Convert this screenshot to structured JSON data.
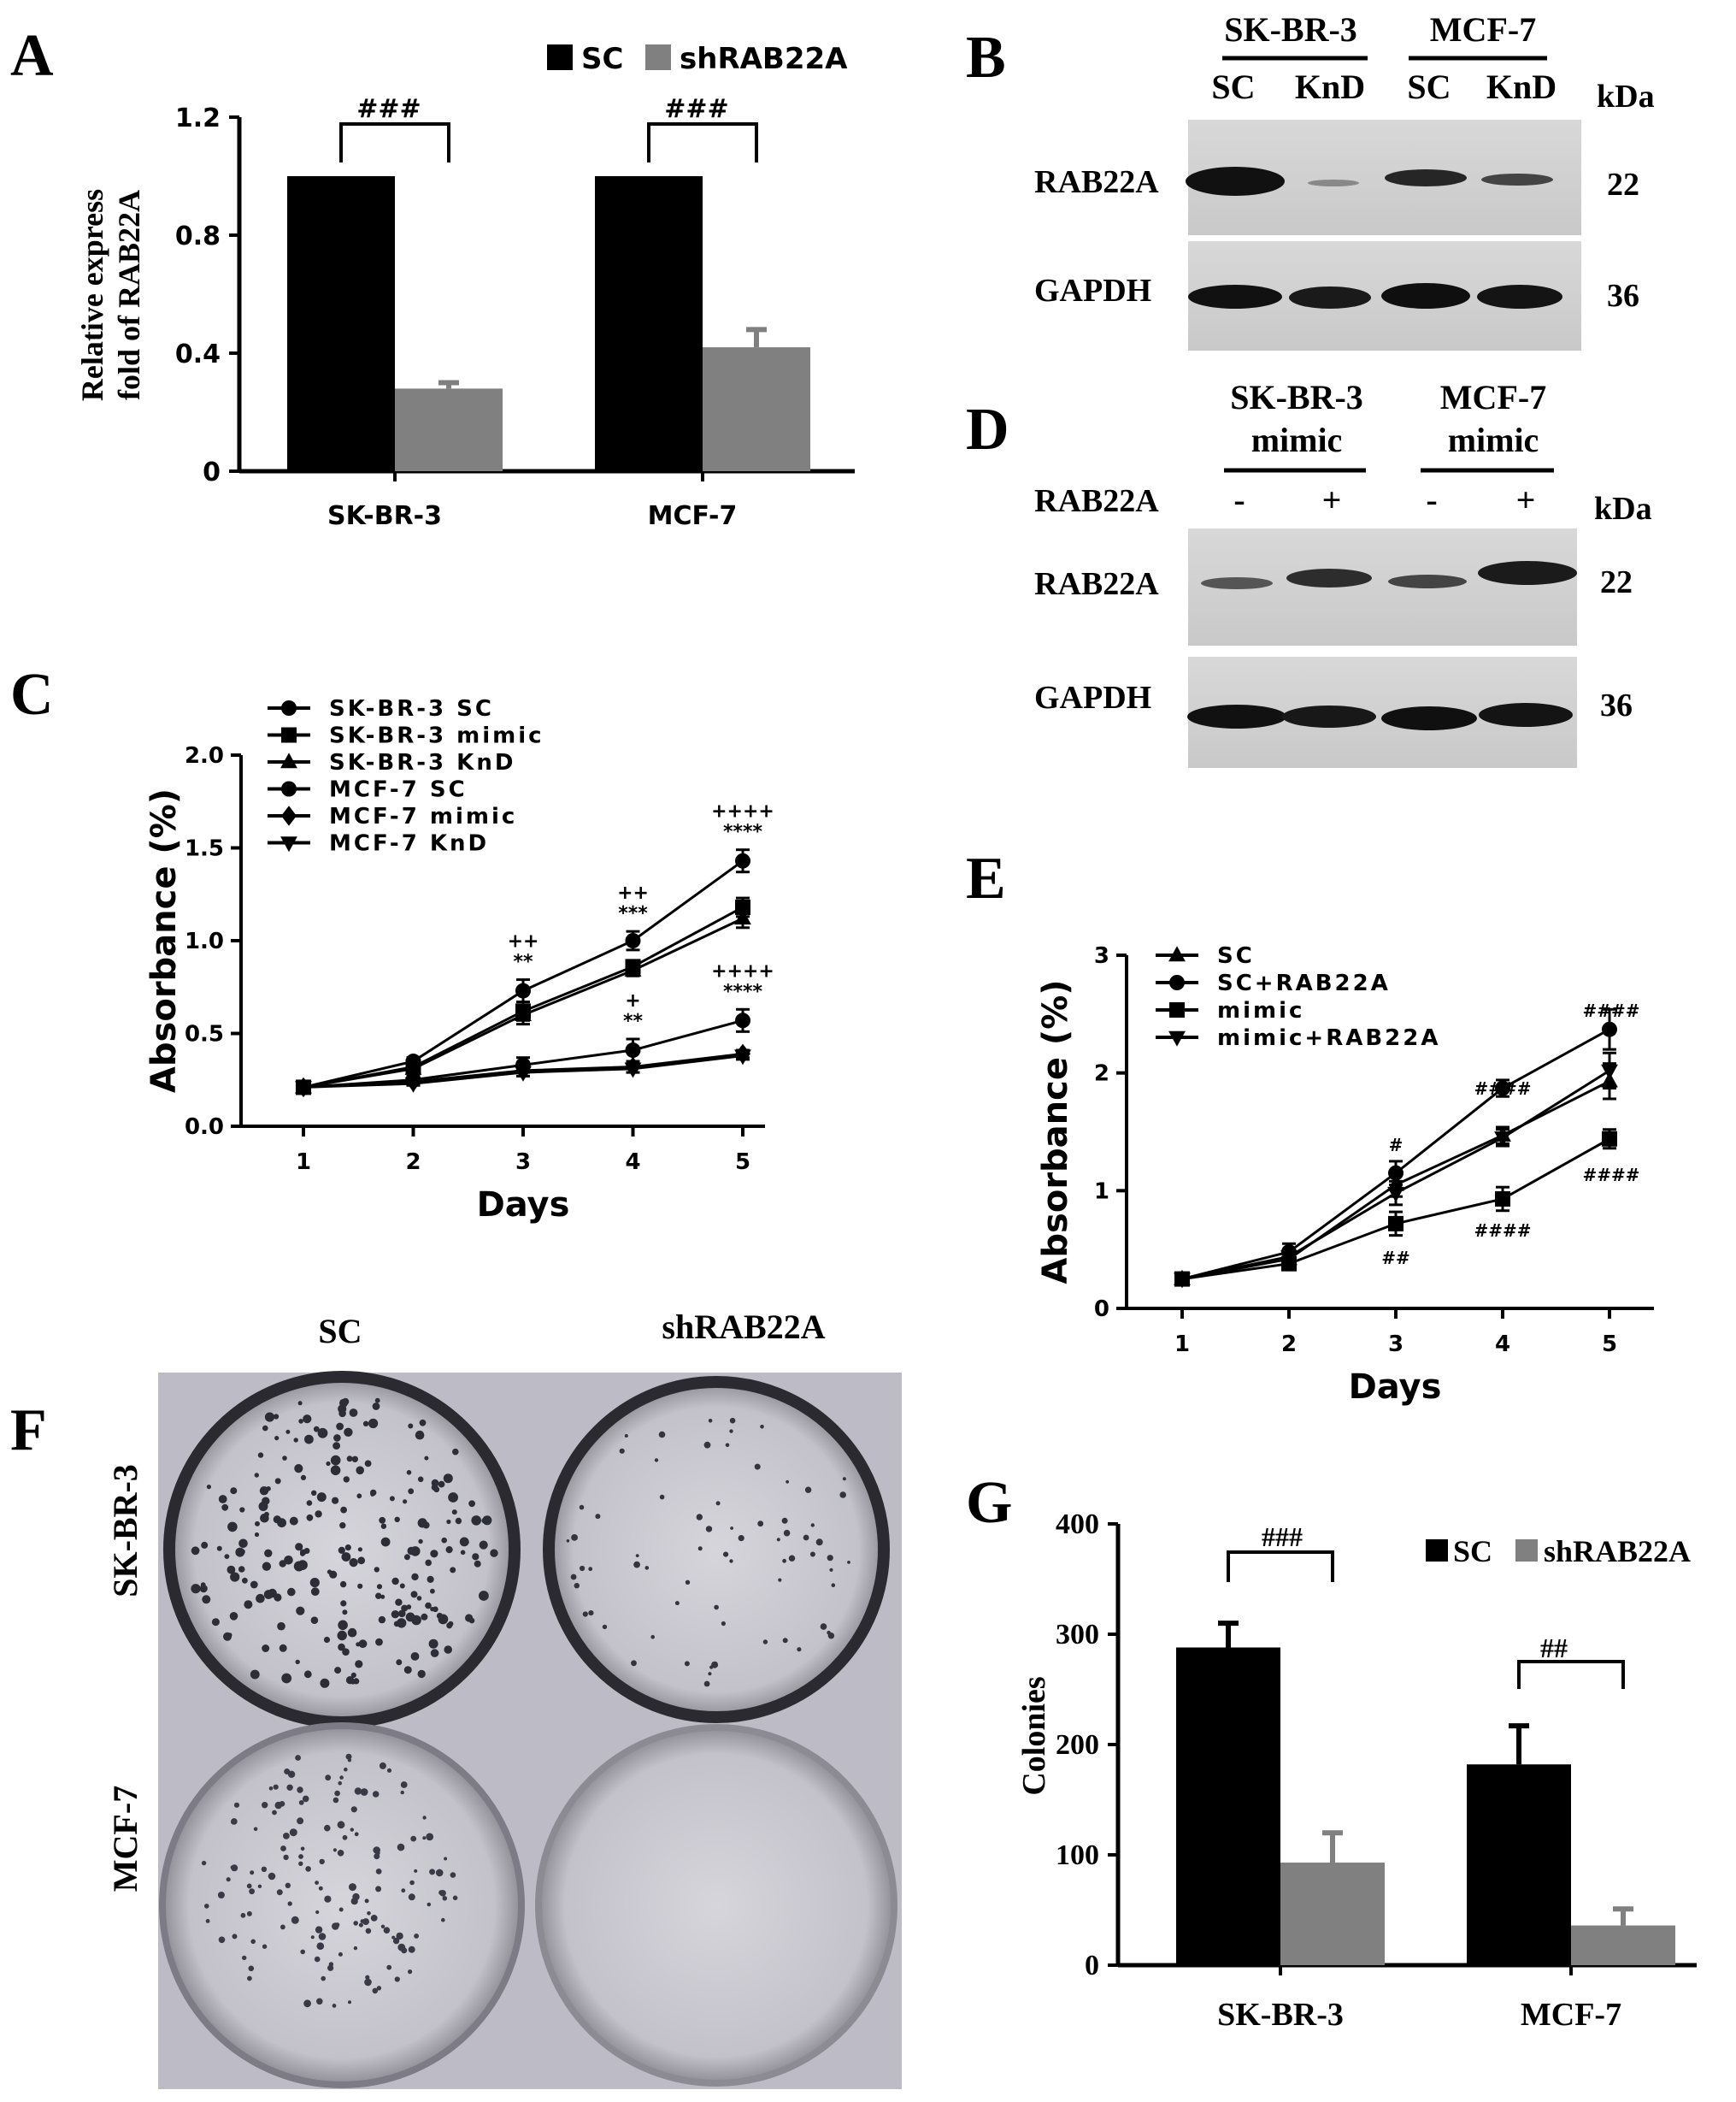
{
  "panels": {
    "A": {
      "letter": "A",
      "legend": [
        "SC",
        "shRAB22A"
      ],
      "sig": [
        "###",
        "###"
      ]
    },
    "B": {
      "letter": "B",
      "groups": [
        "SK-BR-3",
        "MCF-7"
      ],
      "lanes": [
        "SC",
        "KnD",
        "SC",
        "KnD"
      ],
      "kda_label": "kDa",
      "rows": [
        "RAB22A",
        "GAPDH"
      ],
      "kda": [
        "22",
        "36"
      ]
    },
    "C": {
      "letter": "C",
      "legend": [
        "SK-BR-3 SC",
        "SK-BR-3 mimic",
        "SK-BR-3 KnD",
        "MCF-7 SC",
        "MCF-7 mimic",
        "MCF-7 KnD"
      ],
      "annotations": [
        {
          "x": 3,
          "lines": [
            "++",
            "**"
          ]
        },
        {
          "x": 4,
          "lines": [
            "++",
            "***"
          ]
        },
        {
          "x": 5,
          "lines": [
            "++++",
            "****"
          ]
        },
        {
          "x": 4,
          "lines": [
            "+",
            "**"
          ],
          "low": true
        },
        {
          "x": 5,
          "lines": [
            "++++",
            "****"
          ],
          "low": true
        }
      ]
    },
    "D": {
      "letter": "D",
      "groups": [
        "SK-BR-3",
        "MCF-7"
      ],
      "group_sub": "mimic",
      "row_label": "RAB22A",
      "lanes": [
        "-",
        "+",
        "-",
        "+"
      ],
      "kda_label": "kDa",
      "rows": [
        "RAB22A",
        "GAPDH"
      ],
      "kda": [
        "22",
        "36"
      ]
    },
    "E": {
      "letter": "E",
      "legend": [
        "SC",
        "SC+RAB22A",
        "mimic",
        "mimic+RAB22A"
      ],
      "annotations": [
        "#",
        "##",
        "####",
        "####",
        "####",
        "####"
      ]
    },
    "F": {
      "letter": "F",
      "columns": [
        "SC",
        "shRAB22A"
      ],
      "rows": [
        "SK-BR-3",
        "MCF-7"
      ]
    },
    "G": {
      "letter": "G",
      "legend": [
        "SC",
        "shRAB22A"
      ],
      "sig": [
        "###",
        "##"
      ]
    }
  },
  "chart_data": [
    {
      "panel": "A",
      "type": "bar",
      "categories": [
        "SK-BR-3",
        "MCF-7"
      ],
      "series": [
        {
          "name": "SC",
          "values": [
            1.0,
            1.0
          ],
          "errors": [
            0,
            0
          ],
          "color": "#000000"
        },
        {
          "name": "shRAB22A",
          "values": [
            0.28,
            0.42
          ],
          "errors": [
            0.02,
            0.06
          ],
          "color": "#808080"
        }
      ],
      "ylabel": "Relative express fold of RAB22A",
      "ylim": [
        0,
        1.2
      ],
      "yticks": [
        "0",
        "0.4",
        "0.8",
        "1.2"
      ]
    },
    {
      "panel": "C",
      "type": "line",
      "x": [
        1,
        2,
        3,
        4,
        5
      ],
      "series": [
        {
          "name": "SK-BR-3 SC",
          "marker": "circle",
          "values": [
            0.21,
            0.35,
            0.73,
            1.0,
            1.43
          ],
          "errors": [
            0.01,
            0.02,
            0.06,
            0.05,
            0.06
          ]
        },
        {
          "name": "SK-BR-3 mimic",
          "marker": "square",
          "values": [
            0.21,
            0.32,
            0.62,
            0.86,
            1.18
          ],
          "errors": [
            0.01,
            0.02,
            0.05,
            0.03,
            0.05
          ]
        },
        {
          "name": "SK-BR-3 KnD",
          "marker": "triangle",
          "values": [
            0.21,
            0.31,
            0.6,
            0.84,
            1.12
          ],
          "errors": [
            0.01,
            0.02,
            0.05,
            0.03,
            0.05
          ]
        },
        {
          "name": "MCF-7 SC",
          "marker": "circle",
          "values": [
            0.21,
            0.25,
            0.33,
            0.41,
            0.57
          ],
          "errors": [
            0.01,
            0.02,
            0.04,
            0.06,
            0.06
          ]
        },
        {
          "name": "MCF-7 mimic",
          "marker": "diamond",
          "values": [
            0.21,
            0.24,
            0.3,
            0.32,
            0.39
          ],
          "errors": [
            0.01,
            0.01,
            0.03,
            0.03,
            0.02
          ]
        },
        {
          "name": "MCF-7 KnD",
          "marker": "triangle-down",
          "values": [
            0.21,
            0.23,
            0.29,
            0.31,
            0.38
          ],
          "errors": [
            0.01,
            0.01,
            0.02,
            0.02,
            0.02
          ]
        }
      ],
      "xlabel": "Days",
      "ylabel": "Absorbance (%)",
      "xticks": [
        "1",
        "2",
        "3",
        "4",
        "5"
      ],
      "yticks": [
        "0.0",
        "0.5",
        "1.0",
        "1.5",
        "2.0"
      ],
      "ylim": [
        0,
        2.0
      ]
    },
    {
      "panel": "E",
      "type": "line",
      "x": [
        1,
        2,
        3,
        4,
        5
      ],
      "series": [
        {
          "name": "SC",
          "marker": "triangle",
          "values": [
            0.25,
            0.42,
            1.05,
            1.47,
            1.93
          ],
          "errors": [
            0.02,
            0.05,
            0.1,
            0.07,
            0.15
          ]
        },
        {
          "name": "SC+RAB22A",
          "marker": "circle",
          "values": [
            0.25,
            0.48,
            1.15,
            1.87,
            2.37
          ],
          "errors": [
            0.02,
            0.07,
            0.1,
            0.07,
            0.17
          ]
        },
        {
          "name": "mimic",
          "marker": "square",
          "values": [
            0.25,
            0.38,
            0.72,
            0.93,
            1.44
          ],
          "errors": [
            0.02,
            0.04,
            0.1,
            0.1,
            0.08
          ]
        },
        {
          "name": "mimic+RAB22A",
          "marker": "triangle-down",
          "values": [
            0.25,
            0.44,
            0.98,
            1.45,
            2.02
          ],
          "errors": [
            0.02,
            0.05,
            0.1,
            0.07,
            0.15
          ]
        }
      ],
      "xlabel": "Days",
      "ylabel": "Absorbance (%)",
      "xticks": [
        "1",
        "2",
        "3",
        "4",
        "5"
      ],
      "yticks": [
        "0",
        "1",
        "2",
        "3"
      ],
      "ylim": [
        0,
        3
      ]
    },
    {
      "panel": "G",
      "type": "bar",
      "categories": [
        "SK-BR-3",
        "MCF-7"
      ],
      "series": [
        {
          "name": "SC",
          "values": [
            288,
            182
          ],
          "errors": [
            22,
            35
          ],
          "color": "#000000"
        },
        {
          "name": "shRAB22A",
          "values": [
            93,
            36
          ],
          "errors": [
            27,
            15
          ],
          "color": "#808080"
        }
      ],
      "ylabel": "Colonies",
      "ylim": [
        0,
        400
      ],
      "yticks": [
        "0",
        "100",
        "200",
        "300",
        "400"
      ]
    }
  ]
}
